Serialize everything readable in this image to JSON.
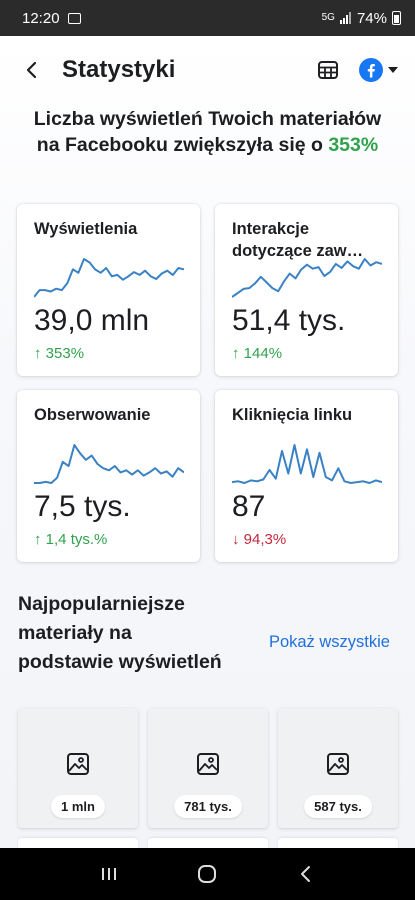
{
  "status_bar": {
    "time": "12:20",
    "network": "5G",
    "battery": "74%"
  },
  "header": {
    "title": "Statystyki",
    "icons": [
      "back-icon",
      "table-icon",
      "facebook-icon",
      "caret-down-icon"
    ]
  },
  "headline": {
    "text": "Liczba wyświetleń Twoich materiałów na Facebooku zwiększyła się o ",
    "percent": "353%"
  },
  "colors": {
    "accent_green": "#31a24c",
    "accent_red": "#c5283d",
    "link_blue": "#216fdb",
    "facebook_blue": "#1877f2",
    "chart_line": "#3b82c4"
  },
  "metrics": [
    {
      "title": "Wyświetlenia",
      "value": "39,0 mln",
      "arrow": "↑",
      "change": "353%",
      "direction": "up",
      "trend": [
        2,
        3,
        3,
        2.8,
        3.2,
        3,
        4,
        6,
        5.5,
        7.5,
        7,
        6,
        5.5,
        6.2,
        5,
        5.2,
        4.5,
        5,
        5.6,
        5.2,
        5.8,
        5,
        4.6,
        5.4,
        5.8,
        5.2,
        6.2,
        6
      ]
    },
    {
      "title": "Interakcje dotyczące zaw…",
      "value": "51,4 tys.",
      "arrow": "↑",
      "change": "144%",
      "direction": "up",
      "trend": [
        2.5,
        3,
        3.5,
        3.6,
        4.2,
        5,
        4.3,
        3.6,
        3.2,
        4.4,
        5.4,
        4.8,
        5.9,
        6.5,
        6,
        6.2,
        5.1,
        5.6,
        6.6,
        6.1,
        6.9,
        6.3,
        6,
        7.2,
        6.4,
        6.8,
        6.6
      ]
    },
    {
      "title": "Obserwowanie",
      "value": "7,5 tys.",
      "arrow": "↑",
      "change": "1,4 tys.%",
      "direction": "up",
      "trend": [
        1,
        1,
        1.1,
        1,
        1.5,
        3,
        2.6,
        4.6,
        3.8,
        3.2,
        3.6,
        2.8,
        2.4,
        2.2,
        2.6,
        2,
        2.2,
        1.8,
        2.2,
        1.7,
        2,
        2.4,
        1.9,
        2.1,
        1.6,
        2.4,
        2
      ]
    },
    {
      "title": "Kliknięcia linku",
      "value": "87",
      "arrow": "↓",
      "change": "94,3%",
      "direction": "down",
      "trend": [
        1,
        1.1,
        0.9,
        1.2,
        1.1,
        1.3,
        2.4,
        1.4,
        4.6,
        2,
        5.3,
        2,
        4.8,
        1.6,
        4.4,
        1.6,
        1.2,
        2.6,
        1.1,
        0.9,
        1,
        1.1,
        0.9,
        1.2,
        1
      ]
    }
  ],
  "section": {
    "title": "Najpopularniejsze materiały na podstawie wyświetleń",
    "show_all": "Pokaż wszystkie"
  },
  "top_content": [
    {
      "label": "1 mln",
      "icon": "image-icon"
    },
    {
      "label": "781 tys.",
      "icon": "image-icon"
    },
    {
      "label": "587 tys.",
      "icon": "image-icon"
    }
  ],
  "nav_bar": {
    "icons": [
      "recents-icon",
      "home-icon",
      "back-icon"
    ]
  }
}
